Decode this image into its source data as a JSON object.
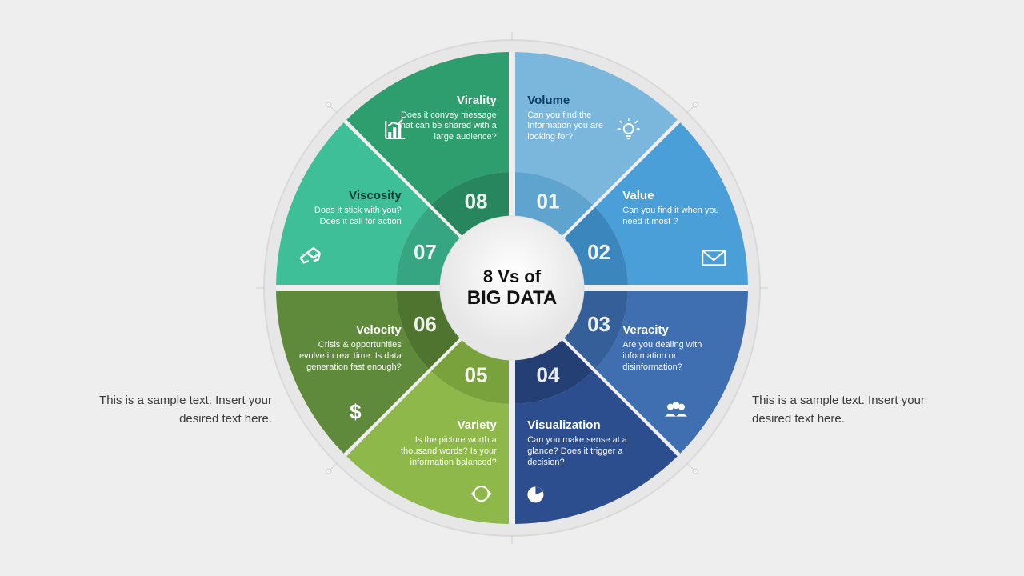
{
  "center": {
    "line1": "8 Vs of",
    "line2": "BIG DATA"
  },
  "sideLeft": "This is a sample text. Insert your desired text here.",
  "sideRight": "This is a sample text. Insert your desired text here.",
  "wheel": {
    "type": "radial-segments",
    "background": "#eeeeee",
    "outerRingFill": "#e7e7e7",
    "outerRingStroke": "#d9d9d9",
    "centerFill": "#ffffff",
    "segments": [
      {
        "num": "01",
        "title": "Volume",
        "desc": "Can you find the Information you are looking for?",
        "outer": "#7bb7dd",
        "inner": "#5fa3cf",
        "icon": "lightbulb",
        "titleColor": "#0a3d62"
      },
      {
        "num": "02",
        "title": "Value",
        "desc": "Can you find it when you need it most ?",
        "outer": "#4a9fd8",
        "inner": "#3a86bd",
        "icon": "mail",
        "titleColor": "#ffffff"
      },
      {
        "num": "03",
        "title": "Veracity",
        "desc": "Are you dealing with information or disinformation?",
        "outer": "#3f6fb0",
        "inner": "#355f98",
        "icon": "users",
        "titleColor": "#ffffff"
      },
      {
        "num": "04",
        "title": "Visualization",
        "desc": "Can you make sense at a glance? Does it trigger a decision?",
        "outer": "#2c4e8f",
        "inner": "#233f73",
        "icon": "pie",
        "titleColor": "#ffffff"
      },
      {
        "num": "05",
        "title": "Variety",
        "desc": "Is the picture worth a thousand words? Is your information balanced?",
        "outer": "#8eb84a",
        "inner": "#7aa23c",
        "icon": "cycle",
        "titleColor": "#ffffff"
      },
      {
        "num": "06",
        "title": "Velocity",
        "desc": "Crisis & opportunities evolve in  real time. Is data generation fast enough?",
        "outer": "#5f8a3b",
        "inner": "#4f7430",
        "icon": "dollar",
        "titleColor": "#ffffff"
      },
      {
        "num": "07",
        "title": "Viscosity",
        "desc": "Does it stick with you? Does it call for action",
        "outer": "#3fbf97",
        "inner": "#35a582",
        "icon": "handshake",
        "titleColor": "#0a3d2e"
      },
      {
        "num": "08",
        "title": "Virality",
        "desc": "Does it convey message that can be shared with a large audience?",
        "outer": "#2f9e6f",
        "inner": "#27865e",
        "icon": "barchart",
        "titleColor": "#ffffff"
      }
    ]
  }
}
